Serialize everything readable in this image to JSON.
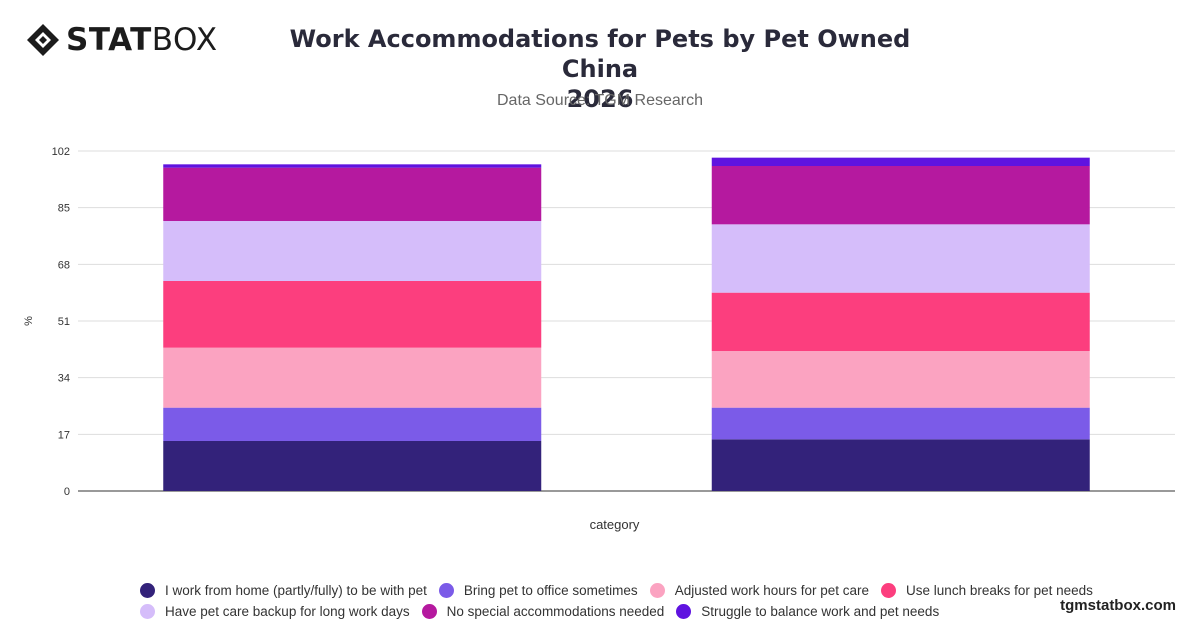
{
  "brand": {
    "name_bold": "STAT",
    "name_regular": "BOX"
  },
  "header": {
    "title_line1": "Work Accommodations for Pets by Pet Owned China",
    "title_line2": "2026",
    "subtitle": "Data Source: TGM Research"
  },
  "watermark": "tgmstatbox.com",
  "chart_data": {
    "type": "bar",
    "stacked": true,
    "categories": [
      "",
      ""
    ],
    "xlabel": "category",
    "ylabel": "%",
    "ylim": [
      0,
      102
    ],
    "yticks": [
      0,
      17,
      34,
      51,
      68,
      85,
      102
    ],
    "grid": true,
    "legend_position": "bottom",
    "series": [
      {
        "name": "I work from home (partly/fully) to be with pet",
        "color": "#33227a",
        "values": [
          15,
          15.5
        ]
      },
      {
        "name": "Bring pet to office sometimes",
        "color": "#7b5be8",
        "values": [
          10,
          9.5
        ]
      },
      {
        "name": "Adjusted work hours for pet care",
        "color": "#fba3c1",
        "values": [
          18,
          17
        ]
      },
      {
        "name": "Use lunch breaks for pet needs",
        "color": "#fc3e7e",
        "values": [
          20,
          17.5
        ]
      },
      {
        "name": "Have pet care backup for long work days",
        "color": "#d5bdfa",
        "values": [
          18,
          20.5
        ]
      },
      {
        "name": "No special accommodations needed",
        "color": "#b5199f",
        "values": [
          16,
          17.5
        ]
      },
      {
        "name": "Struggle to balance work and pet needs",
        "color": "#5f13e0",
        "values": [
          1,
          2.5
        ]
      }
    ]
  }
}
